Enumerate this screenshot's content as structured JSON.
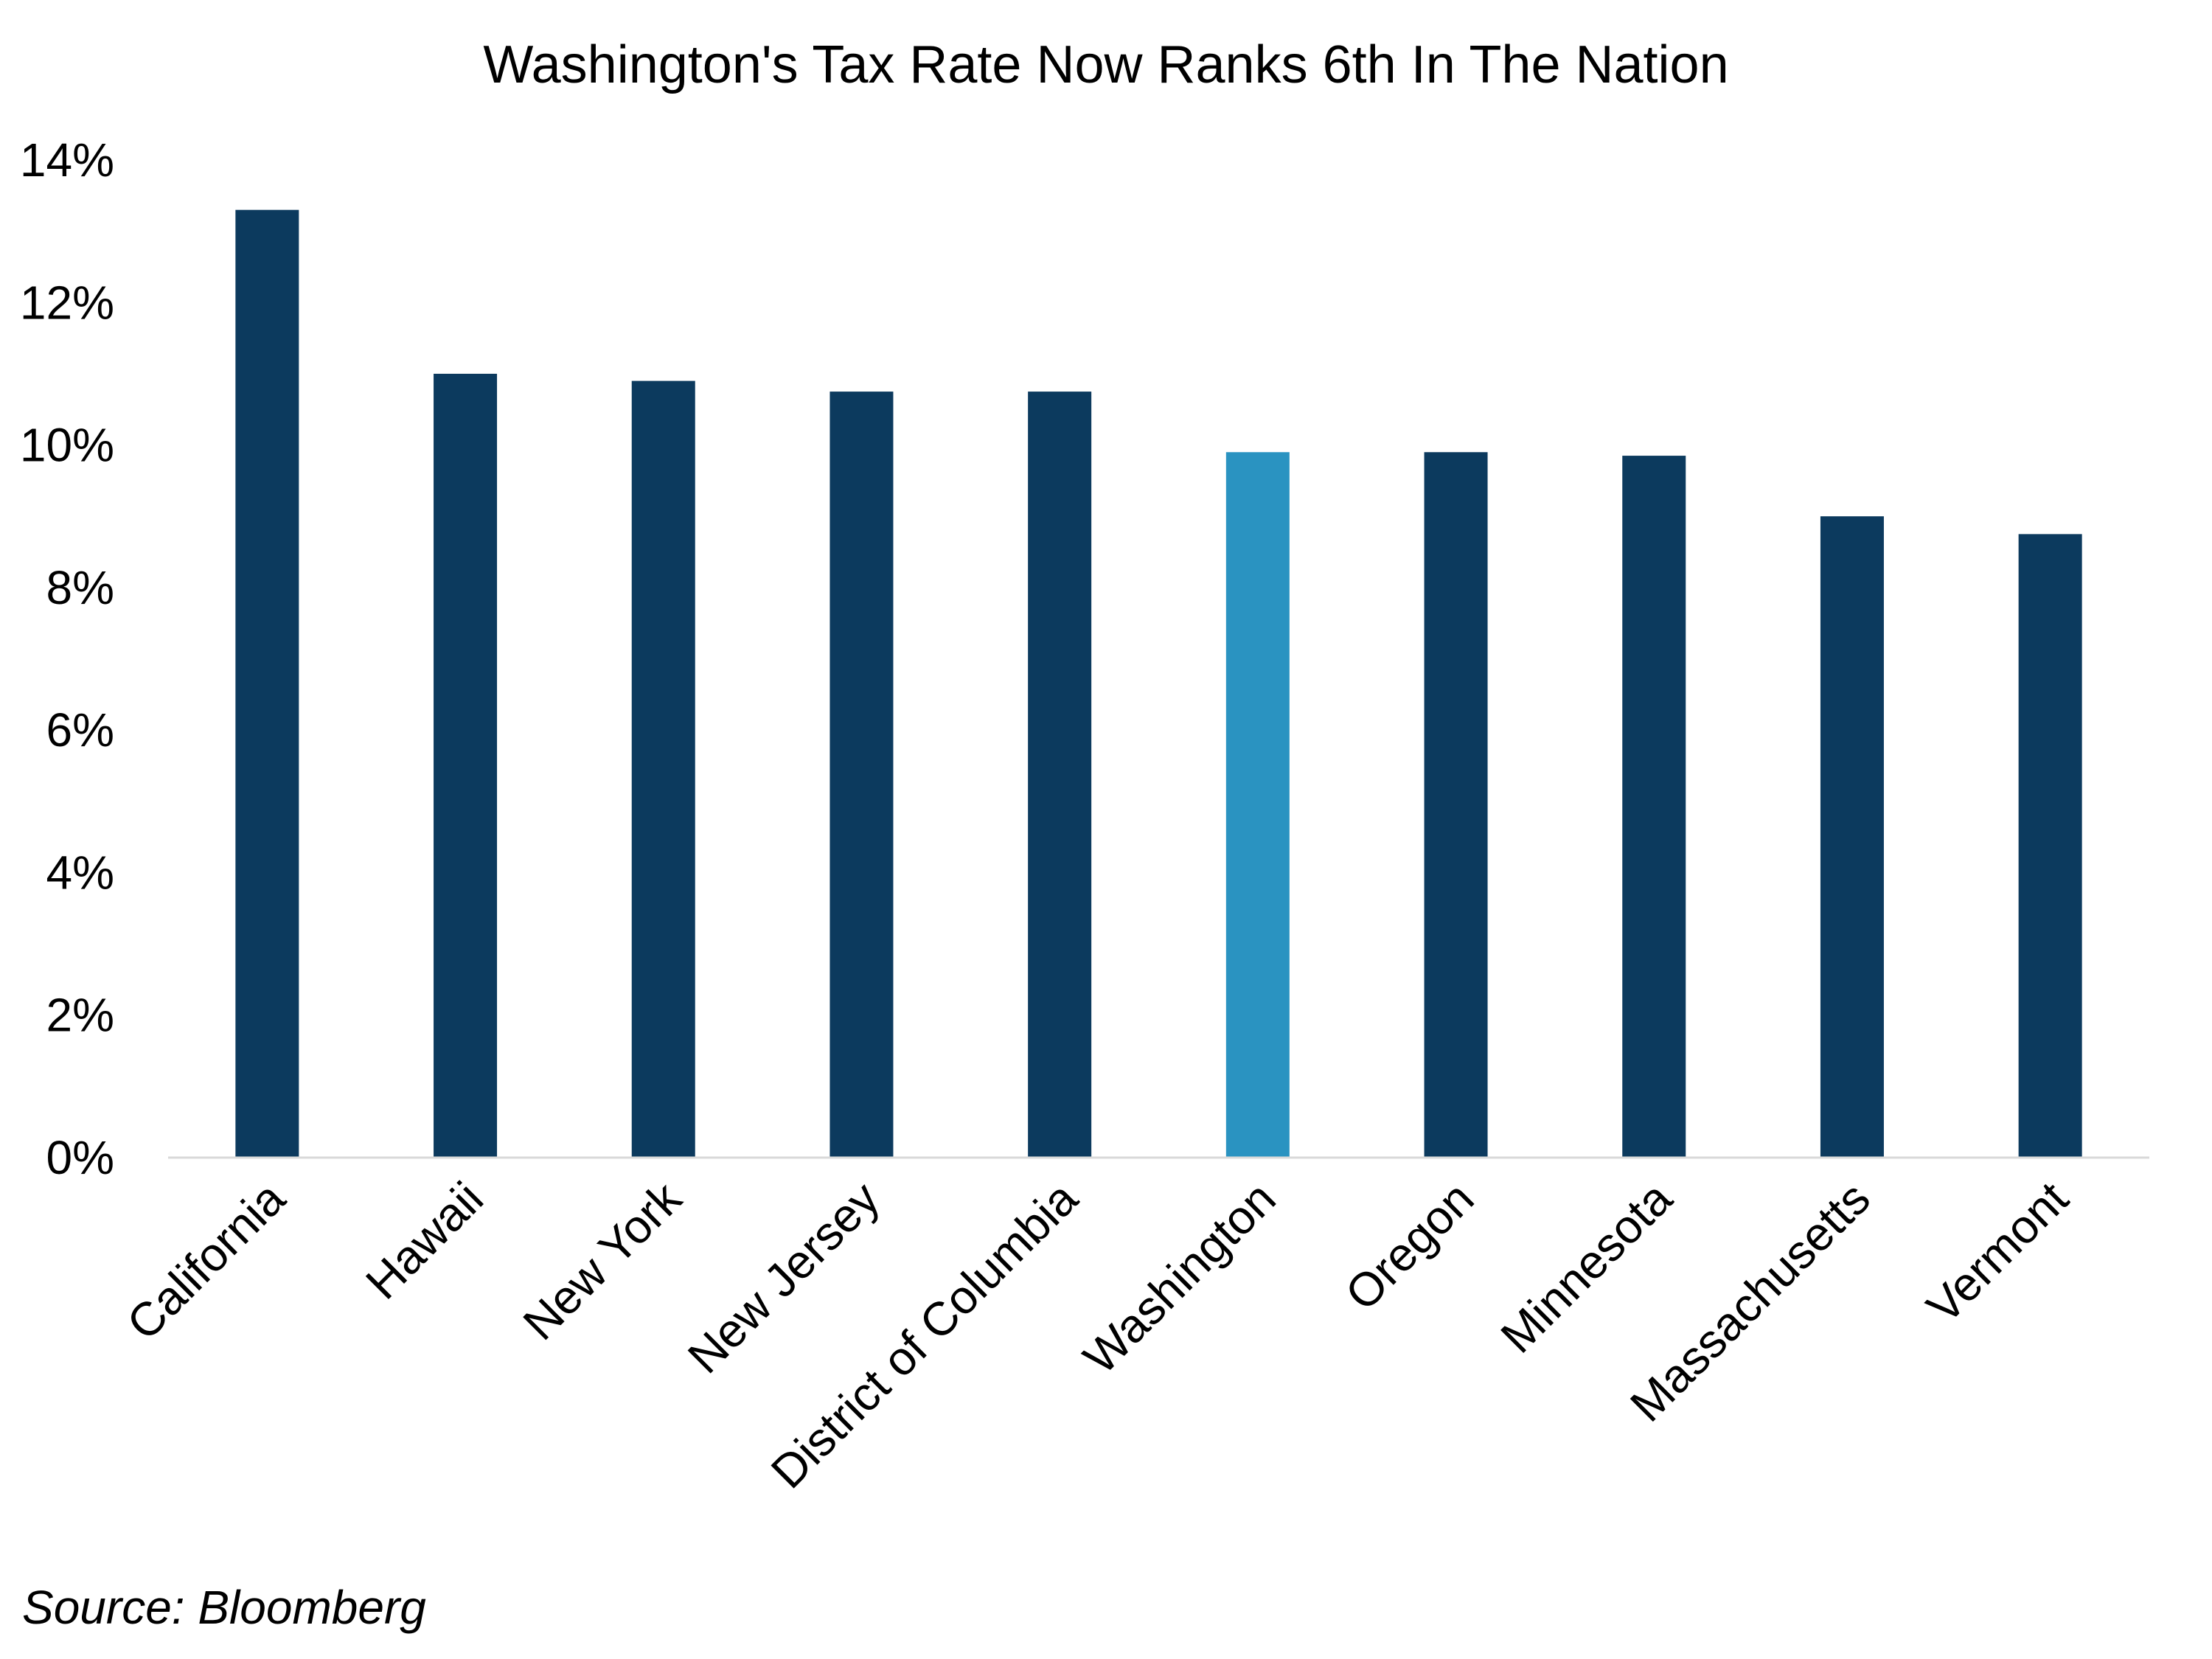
{
  "chart_data": {
    "type": "bar",
    "title": "Washington's Tax Rate Now Ranks 6th In The Nation",
    "categories": [
      "California",
      "Hawaii",
      "New York",
      "New Jersey",
      "District of Columbia",
      "Washington",
      "Oregon",
      "Minnesota",
      "Massachusetts",
      "Vermont"
    ],
    "values": [
      13.3,
      11.0,
      10.9,
      10.75,
      10.75,
      9.9,
      9.9,
      9.85,
      9.0,
      8.75
    ],
    "ylim": [
      0,
      14
    ],
    "yticks": [
      "0%",
      "2%",
      "4%",
      "6%",
      "8%",
      "10%",
      "12%",
      "14%"
    ],
    "highlight_category": "Washington",
    "colors": {
      "bar": "#0c3a5e",
      "highlight": "#2a93c1",
      "axis": "#d9d9d9"
    },
    "grid": false,
    "xlabel": "",
    "ylabel": ""
  },
  "source": "Source: Bloomberg"
}
